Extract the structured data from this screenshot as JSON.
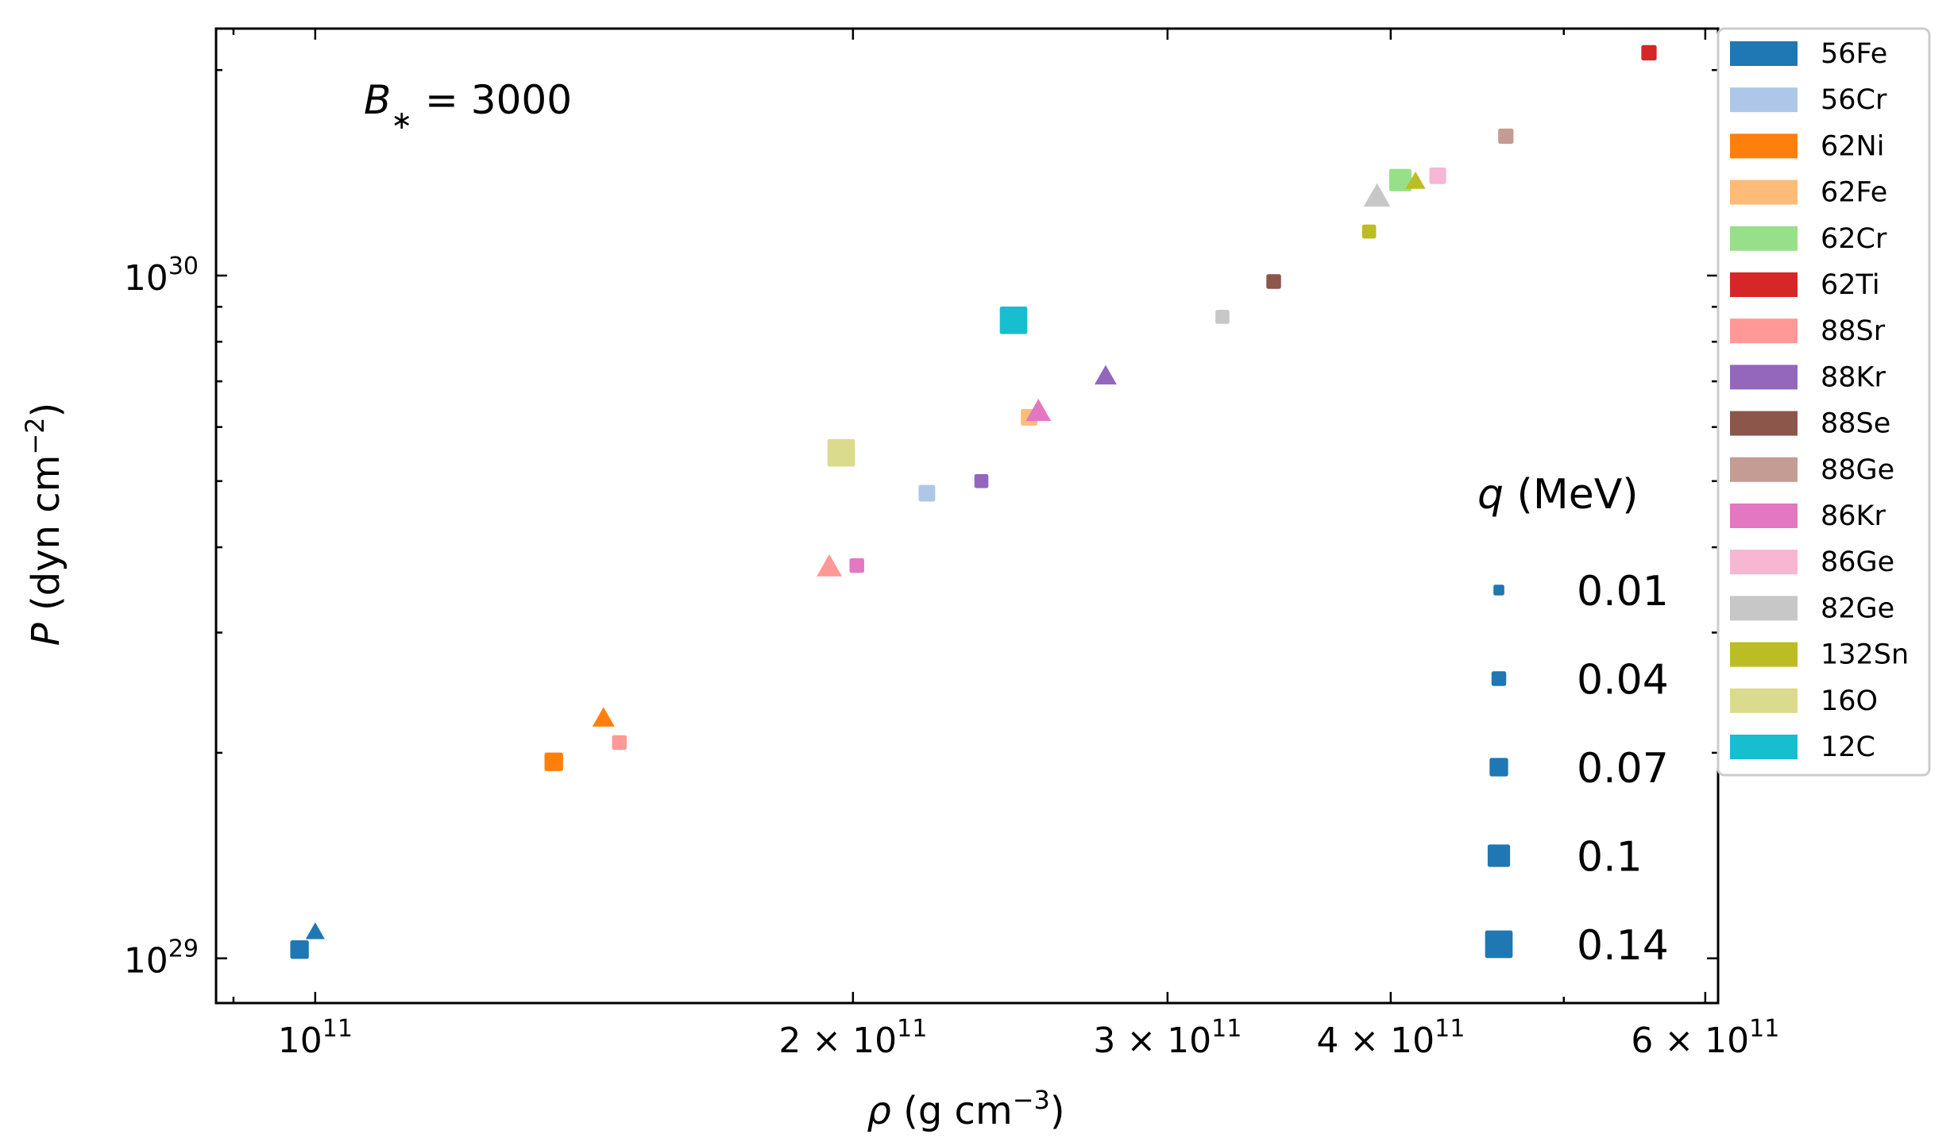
{
  "chart_data": {
    "type": "scatter",
    "x_scale": "log",
    "y_scale": "log",
    "xlim": [
      88000000000,
      610000000000
    ],
    "ylim": [
      8.6e+28,
      2.3e+30
    ],
    "xlabel": {
      "symbol": "ρ",
      "text": " (g cm",
      "exp": "−3",
      "close": ")"
    },
    "ylabel": {
      "symbol": "P",
      "text": " (dyn cm",
      "exp": "−2",
      "close": ")"
    },
    "annotation": {
      "symbol": "B",
      "sub": "∗",
      "text": " = 3000"
    },
    "x_ticks": [
      {
        "value": 100000000000,
        "label": "10",
        "sup": "11"
      },
      {
        "value": 200000000000,
        "label": "2 × 10",
        "sup": "11"
      },
      {
        "value": 300000000000,
        "label": "3 × 10",
        "sup": "11"
      },
      {
        "value": 400000000000,
        "label": "4 × 10",
        "sup": "11"
      },
      {
        "value": 600000000000,
        "label": "6 × 10",
        "sup": "11"
      }
    ],
    "y_ticks": [
      {
        "value": 1e+29,
        "label": "10",
        "sup": "29"
      },
      {
        "value": 1e+30,
        "label": "10",
        "sup": "30"
      }
    ],
    "legend": {
      "placement": "outside-right",
      "entries": [
        {
          "name": "56Fe",
          "color": "#1f77b4"
        },
        {
          "name": "56Cr",
          "color": "#aec7e8"
        },
        {
          "name": "62Ni",
          "color": "#ff7f0e"
        },
        {
          "name": "62Fe",
          "color": "#ffbb78"
        },
        {
          "name": "62Cr",
          "color": "#98df8a"
        },
        {
          "name": "62Ti",
          "color": "#d62728"
        },
        {
          "name": "88Sr",
          "color": "#ff9896"
        },
        {
          "name": "88Kr",
          "color": "#9467bd"
        },
        {
          "name": "88Se",
          "color": "#8c564b"
        },
        {
          "name": "88Ge",
          "color": "#c49c94"
        },
        {
          "name": "86Kr",
          "color": "#e377c2"
        },
        {
          "name": "86Ge",
          "color": "#f7b6d2"
        },
        {
          "name": "82Ge",
          "color": "#c7c7c7"
        },
        {
          "name": "132Sn",
          "color": "#bcbd22"
        },
        {
          "name": "16O",
          "color": "#dbdb8d"
        },
        {
          "name": "12C",
          "color": "#17becf"
        }
      ]
    },
    "size_legend": {
      "title_symbol": "q",
      "title_text": " (MeV)",
      "color": "#1f77b4",
      "entries": [
        {
          "label": "0.01",
          "q": 0.01
        },
        {
          "label": "0.04",
          "q": 0.04
        },
        {
          "label": "0.07",
          "q": 0.07
        },
        {
          "label": "0.1",
          "q": 0.1
        },
        {
          "label": "0.14",
          "q": 0.14
        }
      ]
    },
    "points": [
      {
        "series": "56Fe",
        "marker": "square",
        "x": 98000000000,
        "y": 1.03e+29,
        "q": 0.07
      },
      {
        "series": "56Fe",
        "marker": "triangle",
        "x": 100000000000,
        "y": 1.09e+29,
        "q": 0.05
      },
      {
        "series": "62Ni",
        "marker": "square",
        "x": 136000000000,
        "y": 1.94e+29,
        "q": 0.07
      },
      {
        "series": "62Ni",
        "marker": "triangle",
        "x": 145000000000,
        "y": 2.24e+29,
        "q": 0.07
      },
      {
        "series": "88Sr",
        "marker": "square",
        "x": 148000000000,
        "y": 2.07e+29,
        "q": 0.04
      },
      {
        "series": "88Sr",
        "marker": "triangle",
        "x": 194000000000,
        "y": 3.73e+29,
        "q": 0.09
      },
      {
        "series": "86Kr",
        "marker": "square",
        "x": 201000000000,
        "y": 3.76e+29,
        "q": 0.04
      },
      {
        "series": "16O",
        "marker": "square",
        "x": 197000000000,
        "y": 5.5e+29,
        "q": 0.14
      },
      {
        "series": "56Cr",
        "marker": "square",
        "x": 220000000000,
        "y": 4.8e+29,
        "q": 0.055
      },
      {
        "series": "88Kr",
        "marker": "square",
        "x": 236000000000,
        "y": 5e+29,
        "q": 0.035
      },
      {
        "series": "12C",
        "marker": "square",
        "x": 246000000000,
        "y": 8.6e+29,
        "q": 0.14
      },
      {
        "series": "62Fe",
        "marker": "square",
        "x": 251000000000,
        "y": 6.2e+29,
        "q": 0.055
      },
      {
        "series": "86Kr",
        "marker": "triangle",
        "x": 254000000000,
        "y": 6.3e+29,
        "q": 0.09
      },
      {
        "series": "88Kr",
        "marker": "triangle",
        "x": 277000000000,
        "y": 7.1e+29,
        "q": 0.07
      },
      {
        "series": "82Ge",
        "marker": "square",
        "x": 322000000000,
        "y": 8.7e+29,
        "q": 0.035
      },
      {
        "series": "88Se",
        "marker": "square",
        "x": 344000000000,
        "y": 9.8e+29,
        "q": 0.04
      },
      {
        "series": "132Sn",
        "marker": "square",
        "x": 389000000000,
        "y": 1.16e+30,
        "q": 0.035
      },
      {
        "series": "82Ge",
        "marker": "triangle",
        "x": 393000000000,
        "y": 1.3e+30,
        "q": 0.1
      },
      {
        "series": "62Cr",
        "marker": "square",
        "x": 405000000000,
        "y": 1.38e+30,
        "q": 0.1
      },
      {
        "series": "132Sn",
        "marker": "triangle",
        "x": 413000000000,
        "y": 1.37e+30,
        "q": 0.055
      },
      {
        "series": "86Ge",
        "marker": "square",
        "x": 425000000000,
        "y": 1.4e+30,
        "q": 0.055
      },
      {
        "series": "88Ge",
        "marker": "square",
        "x": 464000000000,
        "y": 1.6e+30,
        "q": 0.045
      },
      {
        "series": "62Ti",
        "marker": "square",
        "x": 558000000000,
        "y": 2.12e+30,
        "q": 0.045
      }
    ]
  }
}
